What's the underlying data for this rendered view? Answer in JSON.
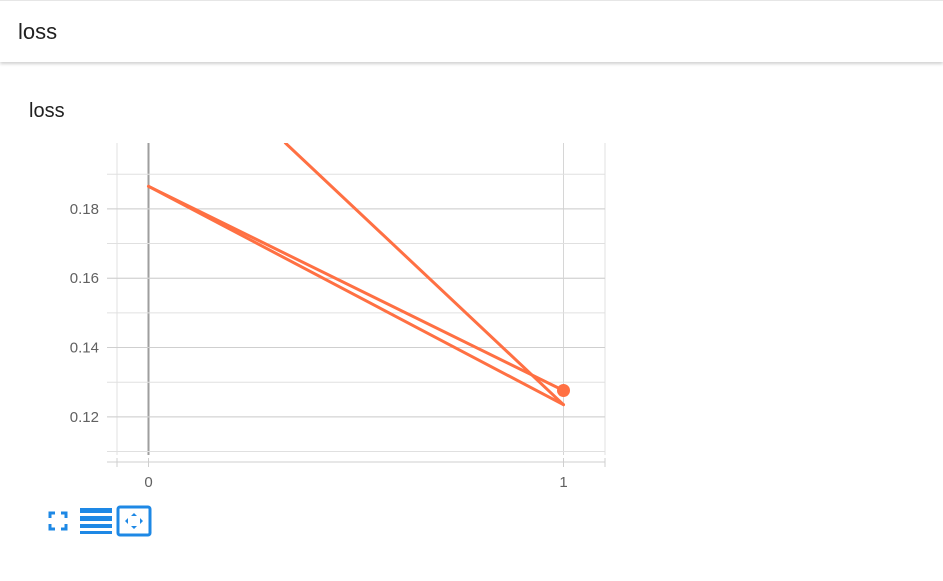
{
  "card": {
    "header_title": "loss"
  },
  "chart_data": {
    "type": "line",
    "title": "loss",
    "xlabel": "",
    "ylabel": "",
    "xlim": [
      -0.1,
      1.1
    ],
    "ylim": [
      0.109,
      0.199
    ],
    "x_ticks": [
      0,
      1
    ],
    "y_ticks": [
      0.12,
      0.14,
      0.16,
      0.18
    ],
    "series": [
      {
        "color": "#ff7043",
        "points": [
          [
            0.33,
            0.199
          ],
          [
            1,
            0.1235
          ]
        ]
      },
      {
        "color": "#ff7043",
        "points": [
          [
            0,
            0.1865
          ],
          [
            1,
            0.1235
          ]
        ]
      },
      {
        "color": "#ff7043",
        "points": [
          [
            0,
            0.1865
          ],
          [
            1,
            0.1276
          ]
        ]
      }
    ],
    "highlight_point": {
      "x": 1,
      "y": 0.1276,
      "color": "#ff7043"
    },
    "grid": true
  },
  "toolbar": {
    "buttons": [
      {
        "name": "fit-to-screen-button",
        "icon": "fullscreen-icon"
      },
      {
        "name": "toggle-legend-button",
        "icon": "list-icon"
      },
      {
        "name": "zoom-fit-button",
        "icon": "zoom-fit-icon"
      }
    ],
    "accent": "#1e88e5"
  }
}
